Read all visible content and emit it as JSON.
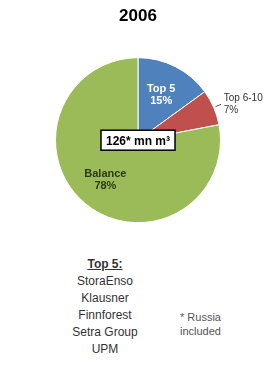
{
  "chart_data": {
    "type": "pie",
    "title": "2006",
    "categories": [
      "Top 5",
      "Top 6-10",
      "Balance"
    ],
    "values": [
      15,
      7,
      78
    ],
    "value_labels": [
      "15%",
      "7%",
      "78%"
    ],
    "colors": [
      "#4F81BD",
      "#C0504D",
      "#9BBB59"
    ],
    "data_labels": true,
    "legend": false,
    "annotations": [
      "126* mn m³",
      "Top 5:\nStoraEnso\nKlausner\nFinnforest\nSetra Group\nUPM",
      "* Russia\nincluded"
    ]
  }
}
